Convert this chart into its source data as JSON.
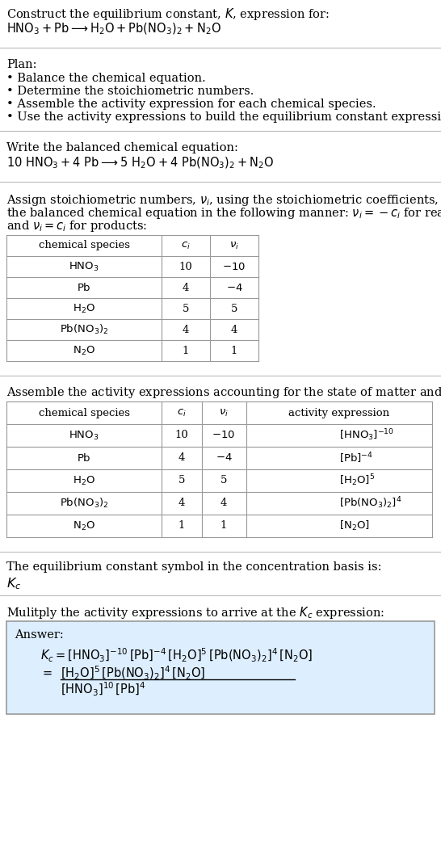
{
  "bg_color": "#ffffff",
  "text_color": "#000000",
  "title_line1": "Construct the equilibrium constant, $K$, expression for:",
  "title_line2": "$\\mathrm{HNO_3 + Pb \\longrightarrow H_2O + Pb(NO_3)_2 + N_2O}$",
  "plan_header": "Plan:",
  "plan_items": [
    "• Balance the chemical equation.",
    "• Determine the stoichiometric numbers.",
    "• Assemble the activity expression for each chemical species.",
    "• Use the activity expressions to build the equilibrium constant expression."
  ],
  "balanced_header": "Write the balanced chemical equation:",
  "balanced_eq": "$\\mathrm{10\\ HNO_3 + 4\\ Pb \\longrightarrow 5\\ H_2O + 4\\ Pb(NO_3)_2 + N_2O}$",
  "stoich_intro_parts": [
    "Assign stoichiometric numbers, $\\nu_i$, using the stoichiometric coefficients, $c_i$, from",
    "the balanced chemical equation in the following manner: $\\nu_i = -c_i$ for reactants",
    "and $\\nu_i = c_i$ for products:"
  ],
  "table1_headers": [
    "chemical species",
    "$c_i$",
    "$\\nu_i$"
  ],
  "table1_rows": [
    [
      "$\\mathrm{HNO_3}$",
      "10",
      "$-10$"
    ],
    [
      "$\\mathrm{Pb}$",
      "4",
      "$-4$"
    ],
    [
      "$\\mathrm{H_2O}$",
      "5",
      "5"
    ],
    [
      "$\\mathrm{Pb(NO_3)_2}$",
      "4",
      "4"
    ],
    [
      "$\\mathrm{N_2O}$",
      "1",
      "1"
    ]
  ],
  "activity_intro": "Assemble the activity expressions accounting for the state of matter and $\\nu_i$:",
  "table2_headers": [
    "chemical species",
    "$c_i$",
    "$\\nu_i$",
    "activity expression"
  ],
  "table2_rows": [
    [
      "$\\mathrm{HNO_3}$",
      "10",
      "$-10$",
      "$[\\mathrm{HNO_3}]^{-10}$"
    ],
    [
      "$\\mathrm{Pb}$",
      "4",
      "$-4$",
      "$[\\mathrm{Pb}]^{-4}$"
    ],
    [
      "$\\mathrm{H_2O}$",
      "5",
      "5",
      "$[\\mathrm{H_2O}]^5$"
    ],
    [
      "$\\mathrm{Pb(NO_3)_2}$",
      "4",
      "4",
      "$[\\mathrm{Pb(NO_3)_2}]^4$"
    ],
    [
      "$\\mathrm{N_2O}$",
      "1",
      "1",
      "$[\\mathrm{N_2O}]$"
    ]
  ],
  "kc_symbol_text": "The equilibrium constant symbol in the concentration basis is:",
  "kc_symbol": "$K_c$",
  "multiply_text": "Mulitply the activity expressions to arrive at the $K_c$ expression:",
  "answer_box_color": "#ddeeff",
  "answer_label": "Answer:",
  "answer_line1": "$K_c = [\\mathrm{HNO_3}]^{-10}\\,[\\mathrm{Pb}]^{-4}\\,[\\mathrm{H_2O}]^5\\,[\\mathrm{Pb(NO_3)_2}]^4\\,[\\mathrm{N_2O}]$",
  "answer_eq_sign": "$=$",
  "answer_num": "$[\\mathrm{H_2O}]^5\\,[\\mathrm{Pb(NO_3)_2}]^4\\,[\\mathrm{N_2O}]$",
  "answer_den": "$[\\mathrm{HNO_3}]^{10}\\,[\\mathrm{Pb}]^4$",
  "table_border_color": "#999999",
  "separator_color": "#bbbbbb",
  "fig_width": 5.46,
  "fig_height": 10.51,
  "dpi": 100,
  "fs": 10.5,
  "fs_small": 9.5
}
